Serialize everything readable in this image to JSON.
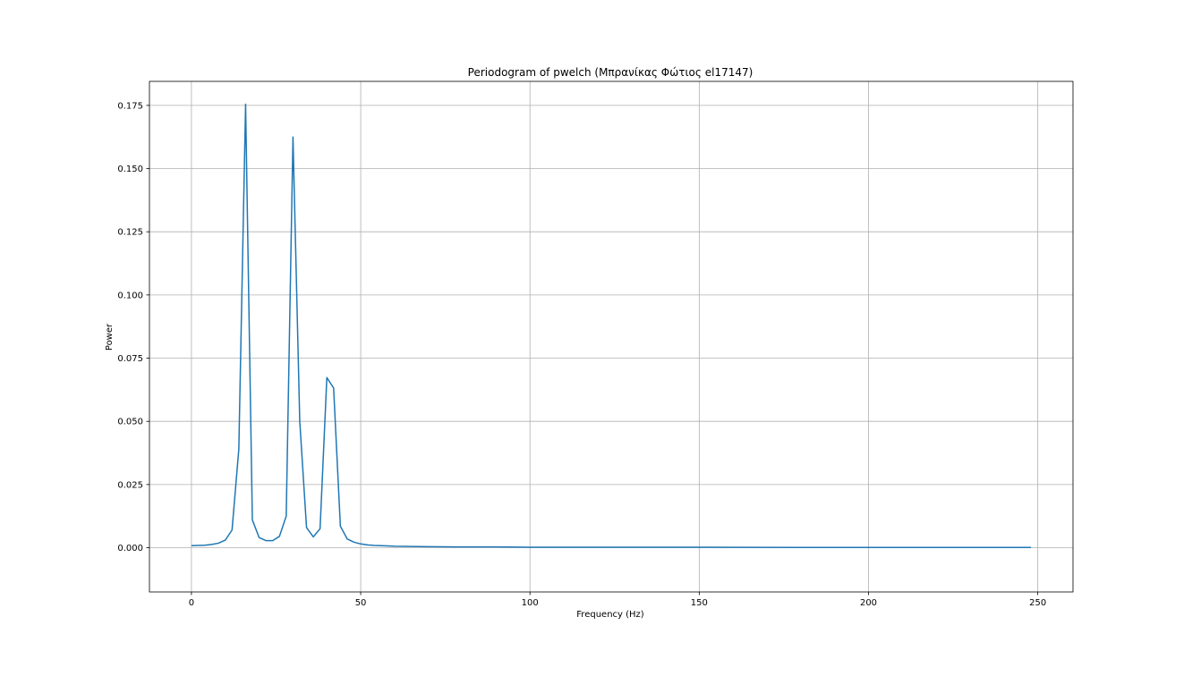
{
  "chart_data": {
    "type": "line",
    "title": "Periodogram of pwelch (Μπρανίκας Φώτιος el17147)",
    "xlabel": "Frequency (Hz)",
    "ylabel": "Power",
    "xlim": [
      -12.4,
      260.4
    ],
    "ylim": [
      -0.0175,
      0.1845
    ],
    "xticks": [
      0,
      50,
      100,
      150,
      200,
      250
    ],
    "xtick_labels": [
      "0",
      "50",
      "100",
      "150",
      "200",
      "250"
    ],
    "yticks": [
      0.0,
      0.025,
      0.05,
      0.075,
      0.1,
      0.125,
      0.15,
      0.175
    ],
    "ytick_labels": [
      "0.000",
      "0.025",
      "0.050",
      "0.075",
      "0.100",
      "0.125",
      "0.150",
      "0.175"
    ],
    "grid": true,
    "color": "#1f77b4",
    "series": [
      {
        "x": [
          0,
          2,
          4,
          6,
          8,
          10,
          12,
          14,
          16,
          18,
          20,
          22,
          24,
          26,
          28,
          30,
          32,
          34,
          36,
          38,
          40,
          42,
          44,
          46,
          48,
          50,
          52,
          54,
          56,
          58,
          60,
          65,
          70,
          80,
          90,
          100,
          120,
          150,
          180,
          200,
          220,
          248
        ],
        "y": [
          0.0008,
          0.0009,
          0.001,
          0.0013,
          0.0018,
          0.003,
          0.007,
          0.039,
          0.1755,
          0.011,
          0.004,
          0.0028,
          0.0028,
          0.0045,
          0.0125,
          0.1625,
          0.05,
          0.008,
          0.0043,
          0.0075,
          0.0673,
          0.0632,
          0.0085,
          0.0035,
          0.0022,
          0.0015,
          0.0011,
          0.0009,
          0.0008,
          0.0007,
          0.0006,
          0.0005,
          0.0004,
          0.0003,
          0.0003,
          0.0002,
          0.0002,
          0.0002,
          0.0001,
          0.0001,
          0.0001,
          0.0001
        ]
      }
    ]
  }
}
